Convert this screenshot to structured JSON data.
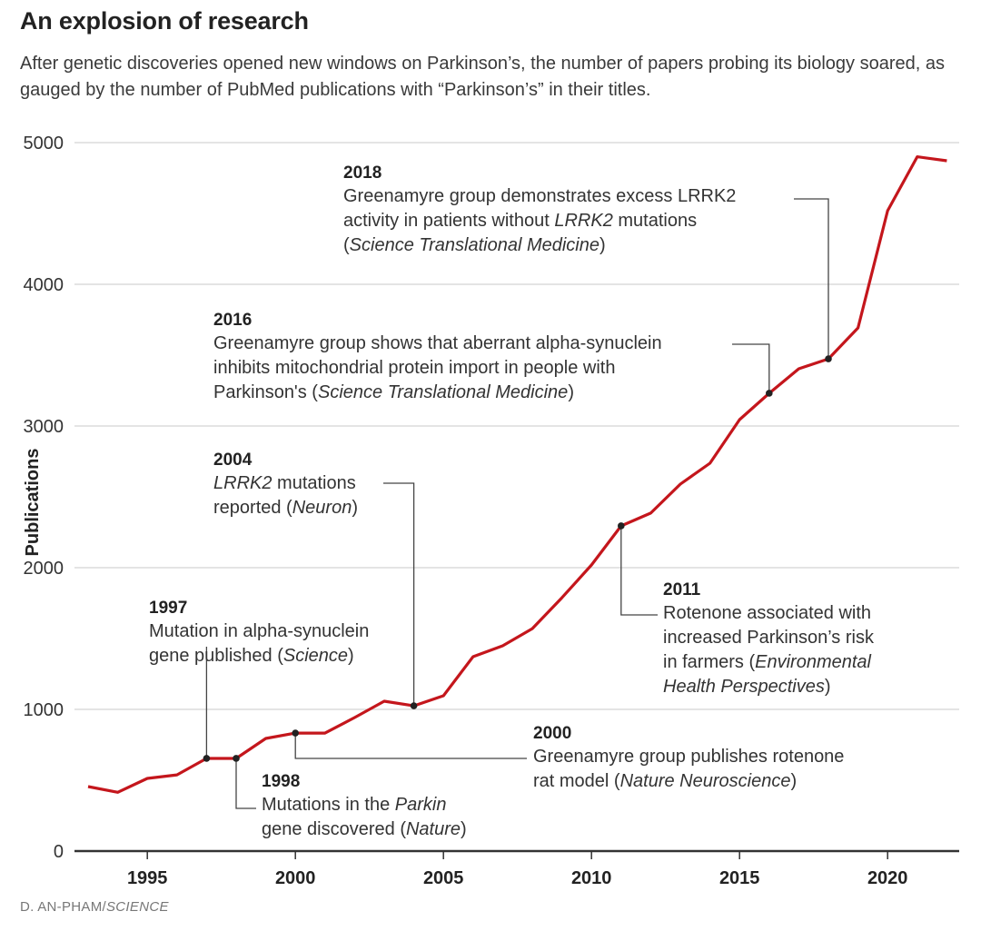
{
  "title": "An explosion of research",
  "subtitle": "After genetic discoveries opened new windows on Parkinson’s, the number of papers probing its biology soared, as gauged by the number of PubMed publications with “Parkinson’s” in their titles.",
  "credit": {
    "author": "D. AN-PHAM/",
    "outlet": "SCIENCE"
  },
  "colors": {
    "line": "#c4161c",
    "marker": "#222222",
    "grid": "#d4d4d4",
    "axis": "#333333",
    "leader": "#444444"
  },
  "chart_data": {
    "type": "line",
    "title": "An explosion of research",
    "xlabel": "",
    "ylabel": "Publications",
    "xlim": [
      1993,
      2022
    ],
    "ylim": [
      0,
      5000
    ],
    "grid": true,
    "x_ticks": [
      1995,
      2000,
      2005,
      2010,
      2015,
      2020
    ],
    "y_ticks": [
      0,
      1000,
      2000,
      3000,
      4000,
      5000
    ],
    "series": [
      {
        "name": "PubMed publications with “Parkinson’s” in title",
        "x": [
          1993,
          1994,
          1995,
          1996,
          1997,
          1998,
          1999,
          2000,
          2001,
          2002,
          2003,
          2004,
          2005,
          2006,
          2007,
          2008,
          2009,
          2010,
          2011,
          2012,
          2013,
          2014,
          2015,
          2016,
          2017,
          2018,
          2019,
          2020,
          2021,
          2022
        ],
        "values": [
          455,
          415,
          513,
          538,
          654,
          654,
          795,
          833,
          833,
          942,
          1058,
          1025,
          1096,
          1372,
          1449,
          1570,
          1788,
          2019,
          2295,
          2385,
          2590,
          2737,
          3045,
          3231,
          3404,
          3474,
          3692,
          4519,
          4900,
          4872
        ]
      }
    ],
    "annotations": [
      {
        "id": "1997",
        "x": 1997,
        "year": "1997",
        "lines": [
          [
            {
              "t": "Mutation in alpha-synuclein"
            }
          ],
          [
            {
              "t": "gene published ("
            },
            {
              "t": "Science",
              "i": true
            },
            {
              "t": ")"
            }
          ]
        ]
      },
      {
        "id": "1998",
        "x": 1998,
        "year": "1998",
        "lines": [
          [
            {
              "t": "Mutations in the "
            },
            {
              "t": "Parkin",
              "i": true
            }
          ],
          [
            {
              "t": "gene discovered ("
            },
            {
              "t": "Nature",
              "i": true
            },
            {
              "t": ")"
            }
          ]
        ]
      },
      {
        "id": "2000",
        "x": 2000,
        "year": "2000",
        "lines": [
          [
            {
              "t": "Greenamyre group publishes rotenone"
            }
          ],
          [
            {
              "t": "rat model ("
            },
            {
              "t": "Nature Neuroscience",
              "i": true
            },
            {
              "t": ")"
            }
          ]
        ]
      },
      {
        "id": "2004",
        "x": 2004,
        "year": "2004",
        "lines": [
          [
            {
              "t": "LRRK2",
              "i": true
            },
            {
              "t": " mutations"
            }
          ],
          [
            {
              "t": "reported ("
            },
            {
              "t": "Neuron",
              "i": true
            },
            {
              "t": ")"
            }
          ]
        ]
      },
      {
        "id": "2011",
        "x": 2011,
        "year": "2011",
        "lines": [
          [
            {
              "t": "Rotenone associated with"
            }
          ],
          [
            {
              "t": "increased Parkinson’s risk"
            }
          ],
          [
            {
              "t": "in farmers ("
            },
            {
              "t": "Environmental",
              "i": true
            }
          ],
          [
            {
              "t": "Health Perspectives",
              "i": true
            },
            {
              "t": ")"
            }
          ]
        ]
      },
      {
        "id": "2016",
        "x": 2016,
        "year": "2016",
        "lines": [
          [
            {
              "t": "Greenamyre group shows that aberrant alpha-synuclein"
            }
          ],
          [
            {
              "t": "inhibits mitochondrial protein import in people with"
            }
          ],
          [
            {
              "t": "Parkinson's ("
            },
            {
              "t": "Science Translational Medicine",
              "i": true
            },
            {
              "t": ")"
            }
          ]
        ]
      },
      {
        "id": "2018",
        "x": 2018,
        "year": "2018",
        "lines": [
          [
            {
              "t": "Greenamyre group demonstrates excess LRRK2"
            }
          ],
          [
            {
              "t": "activity in patients without "
            },
            {
              "t": "LRRK2",
              "i": true
            },
            {
              "t": " mutations"
            }
          ],
          [
            {
              "t": "("
            },
            {
              "t": "Science Translational Medicine",
              "i": true
            },
            {
              "t": ")"
            }
          ]
        ]
      }
    ]
  }
}
